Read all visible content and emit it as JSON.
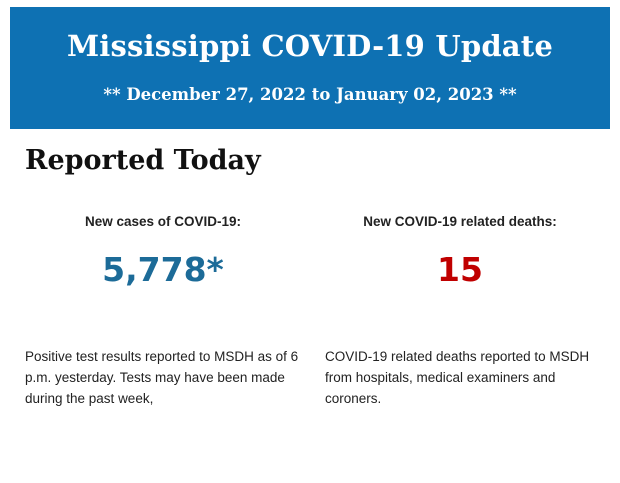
{
  "header": {
    "title": "Mississippi COVID-19 Update",
    "date_range": "** December 27, 2022 to January 02, 2023 **",
    "background_color": "#0e71b3"
  },
  "section": {
    "title": "Reported Today"
  },
  "stats": {
    "cases": {
      "label": "New cases of COVID-19:",
      "value": "5,778*",
      "color": "#1c6b98",
      "note": "Positive test results reported to MSDH as of 6 p.m. yesterday. Tests may have been made during the past week,"
    },
    "deaths": {
      "label": "New COVID-19 related deaths:",
      "value": "15",
      "color": "#c00000",
      "note": "COVID-19 related deaths reported to MSDH from hospitals, medical examiners and coroners."
    }
  }
}
